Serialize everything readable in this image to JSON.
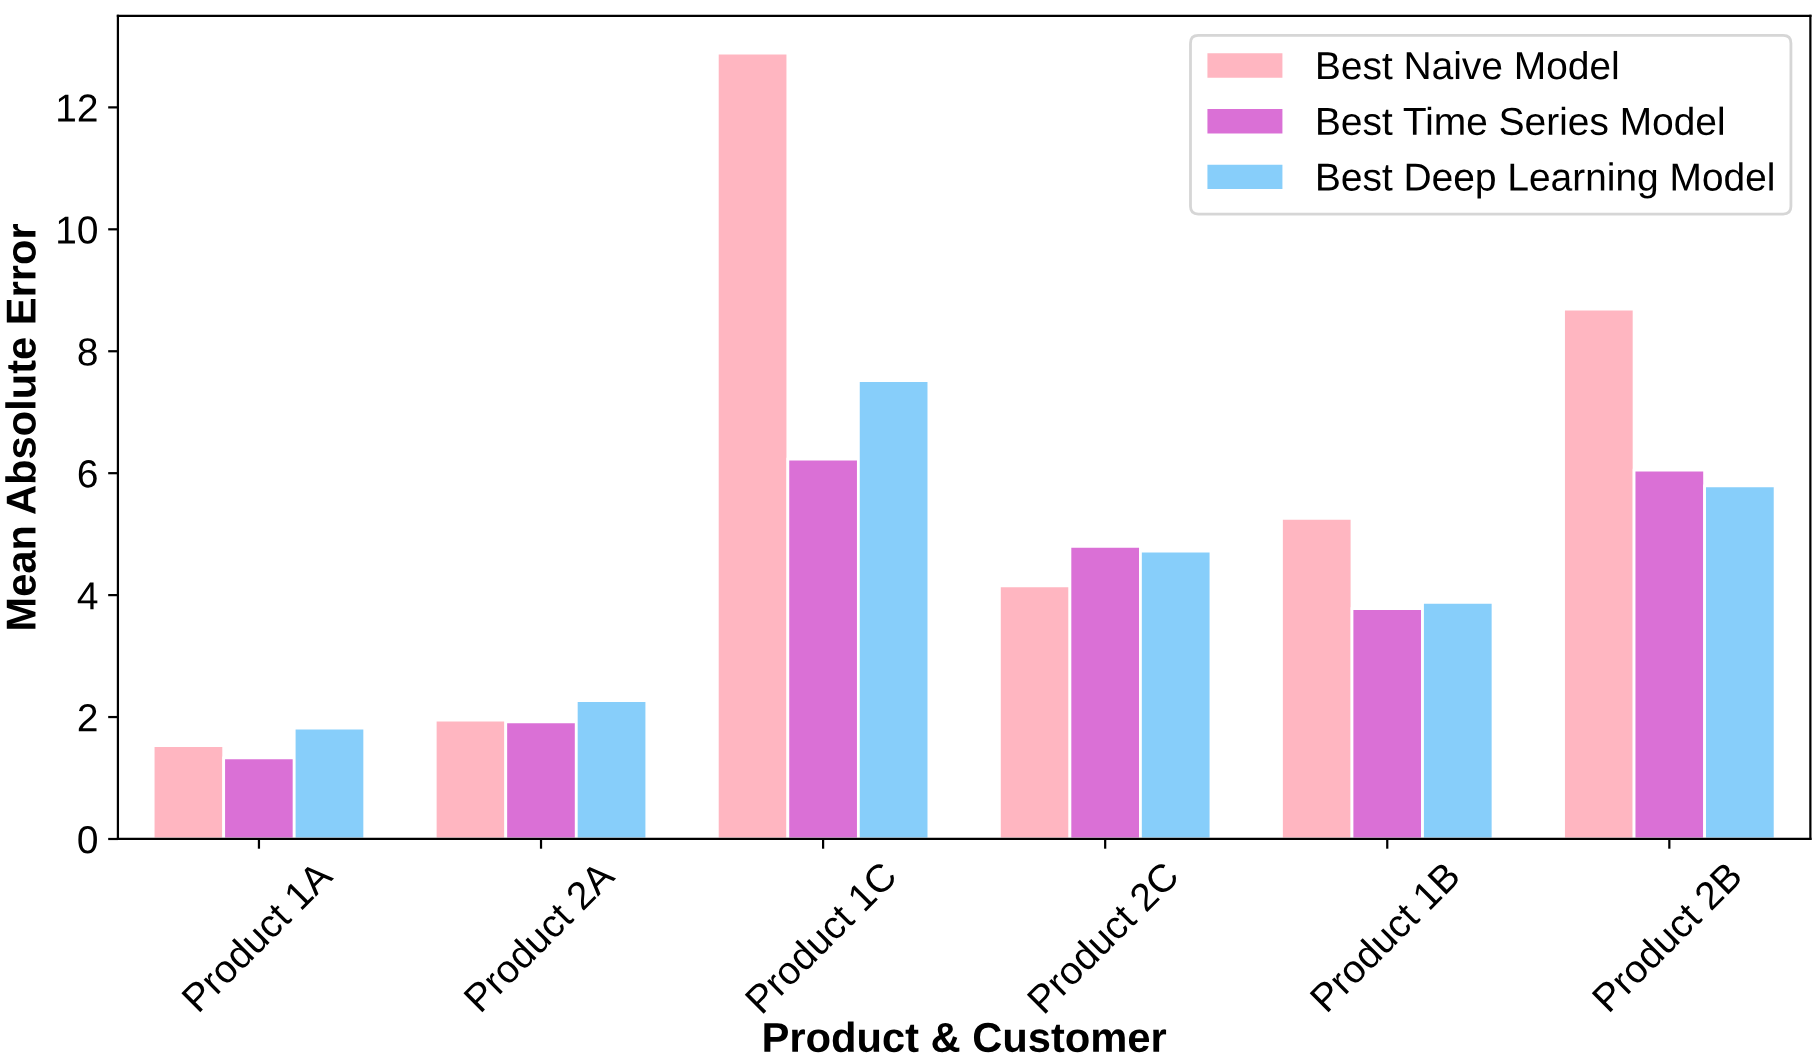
{
  "chart_data": {
    "type": "bar",
    "xlabel": "Product & Customer",
    "ylabel": "Mean Absolute Error",
    "categories": [
      "Product 1A",
      "Product 2A",
      "Product 1C",
      "Product 2C",
      "Product 1B",
      "Product 2B"
    ],
    "series": [
      {
        "name": "Best Naive Model",
        "color": "#ffb6c1",
        "values": [
          1.53,
          1.95,
          12.89,
          4.15,
          5.26,
          8.69
        ]
      },
      {
        "name": "Best Time Series Model",
        "color": "#da70d6",
        "values": [
          1.33,
          1.92,
          6.23,
          4.8,
          3.78,
          6.05
        ]
      },
      {
        "name": "Best Deep Learning Model",
        "color": "#87cefa",
        "values": [
          1.82,
          2.27,
          7.52,
          4.72,
          3.88,
          5.79
        ]
      }
    ],
    "ylim": [
      0,
      13.5
    ],
    "yticks": [
      0,
      2,
      4,
      6,
      8,
      10,
      12
    ],
    "grid": false,
    "legend": "top right"
  }
}
